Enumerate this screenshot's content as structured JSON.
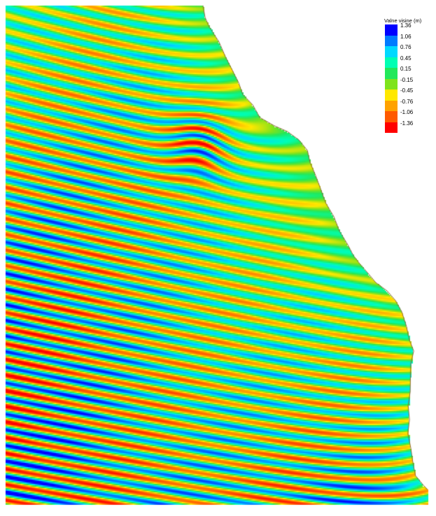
{
  "legend": {
    "title": "Valne visine (m)",
    "items": [
      {
        "label": "1.36",
        "color": "#0000ff",
        "value": 1.36
      },
      {
        "label": "1.06",
        "color": "#007bff",
        "value": 1.06
      },
      {
        "label": "0.76",
        "color": "#00d9ff",
        "value": 0.76
      },
      {
        "label": "0.45",
        "color": "#00ffb3",
        "value": 0.45
      },
      {
        "label": "0.15",
        "color": "#22e85a",
        "value": 0.15
      },
      {
        "label": "-0.15",
        "color": "#7ee31c",
        "value": -0.15
      },
      {
        "label": "-0.45",
        "color": "#ffe800",
        "value": -0.45
      },
      {
        "label": "-0.76",
        "color": "#ffa200",
        "value": -0.76
      },
      {
        "label": "-1.06",
        "color": "#ff5a00",
        "value": -1.06
      },
      {
        "label": "-1.36",
        "color": "#ff0000",
        "value": -1.36
      }
    ]
  },
  "map": {
    "land_color": "#ffffff",
    "shoreline_color": "#8a6a3a"
  }
}
